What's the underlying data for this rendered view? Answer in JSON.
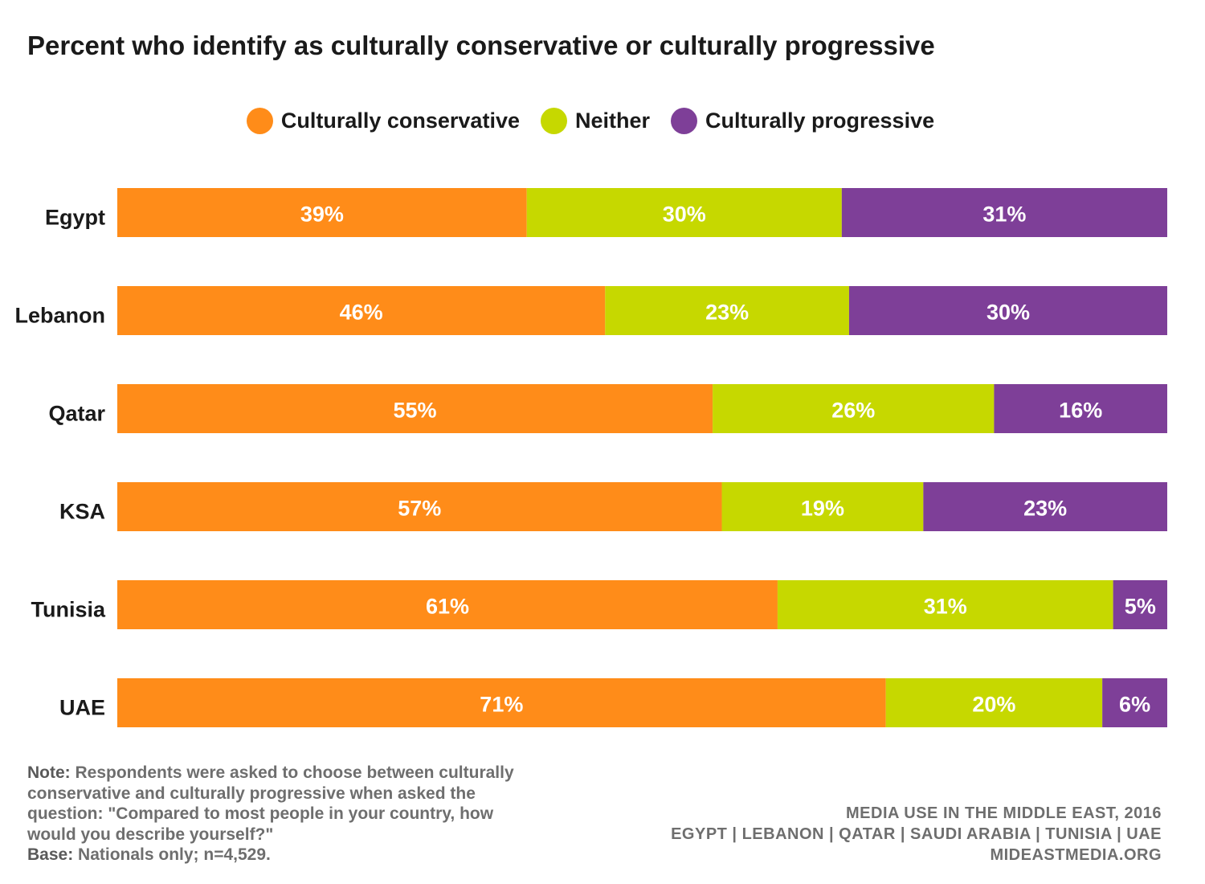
{
  "title": "Percent who identify as culturally conservative or culturally progressive",
  "legend": [
    {
      "label": "Culturally conservative",
      "color": "#FF8C19"
    },
    {
      "label": "Neither",
      "color": "#C6D800"
    },
    {
      "label": "Culturally progressive",
      "color": "#7E3F98"
    }
  ],
  "chart_data": {
    "type": "bar",
    "orientation": "horizontal",
    "stacked": true,
    "categories": [
      "Egypt",
      "Lebanon",
      "Qatar",
      "KSA",
      "Tunisia",
      "UAE"
    ],
    "series": [
      {
        "name": "Culturally conservative",
        "color": "#FF8C19",
        "values": [
          39,
          46,
          55,
          57,
          61,
          71
        ],
        "labels": [
          "39%",
          "46%",
          "55%",
          "57%",
          "61%",
          "71%"
        ]
      },
      {
        "name": "Neither",
        "color": "#C6D800",
        "values": [
          30,
          23,
          26,
          19,
          31,
          20
        ],
        "labels": [
          "30%",
          "23%",
          "26%",
          "19%",
          "31%",
          "20%"
        ]
      },
      {
        "name": "Culturally progressive",
        "color": "#7E3F98",
        "values": [
          31,
          30,
          16,
          23,
          5,
          6
        ],
        "labels": [
          "31%",
          "30%",
          "16%",
          "23%",
          "5%",
          "6%"
        ]
      }
    ],
    "xlim": [
      0,
      100
    ],
    "grid": false,
    "legend_position": "top"
  },
  "note": {
    "note_label": "Note:",
    "note_text": " Respondents were asked to choose between culturally conservative and culturally progressive when asked the question: \"Compared to most people in your country, how would you describe yourself?\"",
    "base_label": "Base:",
    "base_text": " Nationals only; n=4,529."
  },
  "source": {
    "line1": "MEDIA USE IN THE MIDDLE EAST, 2016",
    "line2": "EGYPT | LEBANON | QATAR | SAUDI ARABIA | TUNISIA | UAE",
    "line3": "MIDEASTMEDIA.ORG"
  }
}
